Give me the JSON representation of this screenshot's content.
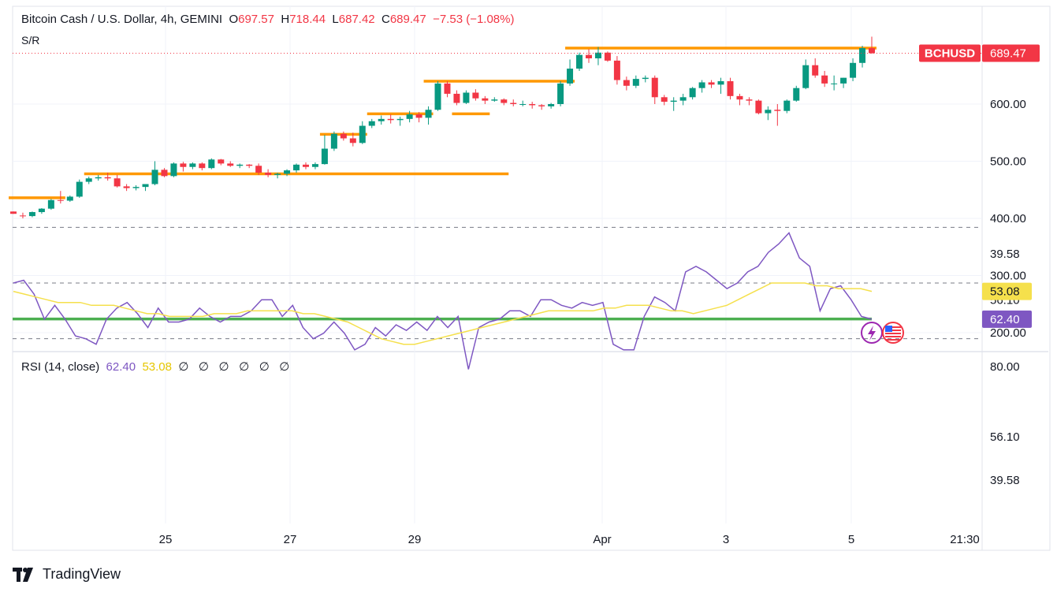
{
  "header": {
    "title": "Bitcoin Cash / U.S. Dollar, 4h, GEMINI",
    "open_label": "O",
    "open": "697.57",
    "high_label": "H",
    "high": "718.44",
    "low_label": "L",
    "low": "687.42",
    "close_label": "C",
    "close": "689.47",
    "change": "−7.53 (−1.08%)",
    "indicator": "S/R"
  },
  "price_tag": {
    "symbol": "BCHUSD",
    "value": "689.47"
  },
  "rsi_header": {
    "name": "RSI (14, close)",
    "rsi": "62.40",
    "ma": "53.08",
    "extras": [
      "∅",
      "∅",
      "∅",
      "∅",
      "∅",
      "∅"
    ]
  },
  "rsi_tags": {
    "rsi": "62.40",
    "upper": "56.10",
    "ma": "53.08",
    "lower": "39.58"
  },
  "footer": {
    "brand": "TradingView"
  },
  "colors": {
    "up": "#089981",
    "down": "#f23645",
    "sr": "#ff9800",
    "support": "#4caf50",
    "rsi": "#7e57c2",
    "rsi_ma": "#f5e04c",
    "band": "#ede7f6"
  },
  "chart_data": [
    {
      "type": "candlestick",
      "title": "Bitcoin Cash / U.S. Dollar, 4h, GEMINI",
      "y_ticks": [
        "200.00",
        "300.00",
        "400.00",
        "500.00",
        "600.00"
      ],
      "ylim": [
        180,
        720
      ],
      "x_ticks": [
        "25",
        "27",
        "29",
        "Apr",
        "3",
        "5",
        "21:30"
      ],
      "candles": [
        [
          412,
          412,
          408,
          408
        ],
        [
          405,
          410,
          400,
          404
        ],
        [
          404,
          412,
          402,
          411
        ],
        [
          411,
          418,
          408,
          417
        ],
        [
          417,
          434,
          415,
          432
        ],
        [
          432,
          448,
          426,
          431
        ],
        [
          431,
          440,
          429,
          438
        ],
        [
          438,
          468,
          436,
          464
        ],
        [
          464,
          473,
          460,
          470
        ],
        [
          470,
          476,
          466,
          472
        ],
        [
          472,
          480,
          466,
          470
        ],
        [
          470,
          476,
          454,
          456
        ],
        [
          456,
          460,
          448,
          453
        ],
        [
          453,
          458,
          449,
          455
        ],
        [
          455,
          460,
          448,
          460
        ],
        [
          460,
          500,
          458,
          485
        ],
        [
          485,
          488,
          472,
          474
        ],
        [
          474,
          498,
          472,
          496
        ],
        [
          496,
          499,
          482,
          490
        ],
        [
          490,
          498,
          486,
          496
        ],
        [
          496,
          498,
          484,
          488
        ],
        [
          488,
          505,
          486,
          503
        ],
        [
          503,
          504,
          493,
          496
        ],
        [
          496,
          500,
          490,
          492
        ],
        [
          492,
          496,
          488,
          494
        ],
        [
          494,
          495,
          488,
          492
        ],
        [
          492,
          496,
          476,
          480
        ],
        [
          480,
          486,
          472,
          476
        ],
        [
          476,
          480,
          470,
          478
        ],
        [
          478,
          486,
          474,
          484
        ],
        [
          484,
          496,
          480,
          494
        ],
        [
          494,
          498,
          486,
          490
        ],
        [
          490,
          498,
          486,
          495
        ],
        [
          495,
          546,
          494,
          522
        ],
        [
          522,
          552,
          518,
          548
        ],
        [
          548,
          552,
          536,
          540
        ],
        [
          540,
          550,
          526,
          532
        ],
        [
          532,
          570,
          530,
          562
        ],
        [
          562,
          574,
          558,
          570
        ],
        [
          570,
          580,
          564,
          574
        ],
        [
          574,
          582,
          566,
          572
        ],
        [
          572,
          578,
          562,
          574
        ],
        [
          574,
          588,
          568,
          582
        ],
        [
          582,
          586,
          568,
          576
        ],
        [
          576,
          596,
          564,
          590
        ],
        [
          590,
          640,
          588,
          636
        ],
        [
          636,
          640,
          612,
          618
        ],
        [
          618,
          624,
          598,
          602
        ],
        [
          602,
          624,
          600,
          620
        ],
        [
          620,
          626,
          606,
          610
        ],
        [
          610,
          614,
          600,
          606
        ],
        [
          606,
          612,
          604,
          608
        ],
        [
          608,
          610,
          598,
          602
        ],
        [
          602,
          608,
          596,
          600
        ],
        [
          600,
          606,
          596,
          600
        ],
        [
          600,
          604,
          592,
          598
        ],
        [
          598,
          600,
          590,
          596
        ],
        [
          596,
          602,
          592,
          600
        ],
        [
          600,
          640,
          596,
          636
        ],
        [
          636,
          678,
          632,
          662
        ],
        [
          662,
          690,
          658,
          686
        ],
        [
          686,
          696,
          672,
          680
        ],
        [
          680,
          700,
          668,
          690
        ],
        [
          690,
          692,
          674,
          676
        ],
        [
          676,
          684,
          634,
          642
        ],
        [
          642,
          648,
          624,
          632
        ],
        [
          632,
          650,
          628,
          644
        ],
        [
          644,
          650,
          638,
          646
        ],
        [
          646,
          650,
          600,
          612
        ],
        [
          612,
          616,
          598,
          604
        ],
        [
          604,
          612,
          588,
          606
        ],
        [
          606,
          618,
          598,
          612
        ],
        [
          612,
          630,
          608,
          628
        ],
        [
          628,
          642,
          620,
          638
        ],
        [
          638,
          642,
          628,
          634
        ],
        [
          634,
          646,
          618,
          640
        ],
        [
          640,
          646,
          608,
          614
        ],
        [
          614,
          618,
          598,
          608
        ],
        [
          608,
          612,
          598,
          606
        ],
        [
          606,
          608,
          582,
          584
        ],
        [
          584,
          596,
          572,
          590
        ],
        [
          590,
          600,
          562,
          588
        ],
        [
          588,
          608,
          584,
          606
        ],
        [
          606,
          632,
          604,
          628
        ],
        [
          628,
          678,
          626,
          668
        ],
        [
          668,
          680,
          646,
          650
        ],
        [
          650,
          658,
          630,
          636
        ],
        [
          636,
          650,
          624,
          636
        ],
        [
          636,
          646,
          628,
          646
        ],
        [
          646,
          680,
          640,
          672
        ],
        [
          672,
          702,
          664,
          698
        ],
        [
          698,
          718,
          688,
          689
        ]
      ],
      "sr_levels": [
        {
          "price": 436,
          "from": 0,
          "to": 5
        },
        {
          "price": 478,
          "from": 8,
          "to": 52
        },
        {
          "price": 547,
          "from": 33,
          "to": 37
        },
        {
          "price": 583,
          "from": 38,
          "to": 44
        },
        {
          "price": 583,
          "from": 47,
          "to": 50
        },
        {
          "price": 640,
          "from": 44,
          "to": 59
        },
        {
          "price": 698,
          "from": 59,
          "to": 91
        }
      ],
      "support_line": {
        "price": 224
      }
    },
    {
      "type": "line",
      "title": "RSI (14, close)",
      "ylim": [
        25,
        88
      ],
      "y_ticks": [
        "80.00",
        "56.10",
        "39.58"
      ],
      "levels": [
        70,
        50,
        30
      ],
      "series": [
        {
          "name": "RSI",
          "values": [
            50,
            49,
            54,
            63,
            58,
            63,
            69,
            70,
            72,
            63,
            59,
            57,
            61,
            66,
            59,
            64,
            64,
            63,
            59,
            62,
            64,
            62,
            62,
            60,
            56,
            56,
            62,
            58,
            66,
            70,
            68,
            64,
            68,
            74,
            72,
            66,
            69,
            65,
            67,
            64,
            67,
            62,
            66,
            62,
            81,
            66,
            64,
            63,
            60,
            60,
            62,
            56,
            56,
            58,
            59,
            57,
            58,
            57,
            72,
            74,
            74,
            62,
            55,
            57,
            60,
            46,
            44,
            46,
            49,
            52,
            50,
            46,
            44,
            39,
            36,
            32,
            41,
            44,
            60,
            52,
            51,
            56,
            62,
            63
          ]
        },
        {
          "name": "MA",
          "values": [
            53,
            54,
            55,
            56,
            57,
            57,
            57,
            58,
            58,
            58,
            59,
            60,
            61,
            61,
            62,
            62,
            62,
            62,
            61,
            61,
            61,
            60,
            60,
            60,
            60,
            60,
            61,
            61,
            62,
            63,
            64,
            66,
            68,
            70,
            71,
            72,
            72,
            71,
            70,
            69,
            68,
            67,
            66,
            65,
            64,
            63,
            62,
            61,
            60,
            60,
            60,
            60,
            60,
            59,
            59,
            58,
            58,
            58,
            59,
            60,
            60,
            61,
            60,
            59,
            58,
            56,
            54,
            52,
            50,
            50,
            50,
            50,
            51,
            51,
            52,
            52,
            52,
            53
          ]
        }
      ]
    }
  ]
}
